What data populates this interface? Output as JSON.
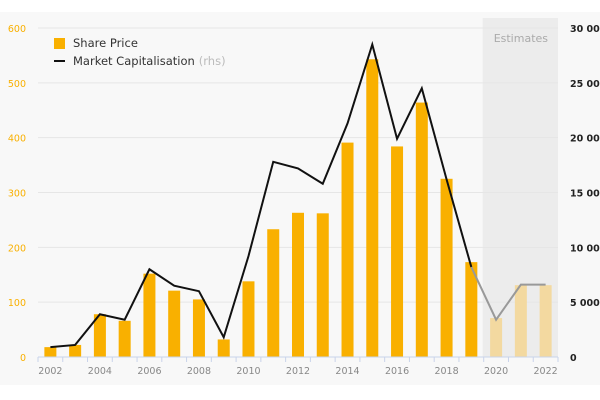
{
  "chart_data": {
    "type": "bar",
    "categories": [
      "2002",
      "2003",
      "2004",
      "2005",
      "2006",
      "2007",
      "2008",
      "2009",
      "2010",
      "2011",
      "2012",
      "2013",
      "2014",
      "2015",
      "2016",
      "2017",
      "2018",
      "2019",
      "2020",
      "2021",
      "2022"
    ],
    "x_tick_labels": [
      "2002",
      "2004",
      "2006",
      "2008",
      "2010",
      "2012",
      "2014",
      "2016",
      "2018",
      "2020",
      "2022"
    ],
    "series": [
      {
        "name": "Share Price",
        "type": "bar",
        "axis": "left",
        "color": "#f9b000",
        "estimate_color": "#f3d9a0",
        "values": [
          18,
          22,
          78,
          66,
          152,
          121,
          105,
          32,
          138,
          233,
          263,
          262,
          391,
          543,
          384,
          464,
          325,
          173,
          71,
          131,
          131
        ]
      },
      {
        "name": "Market Capitalisation",
        "suffix": "(rhs)",
        "type": "line",
        "axis": "right",
        "color": "#111111",
        "estimate_color": "#999999",
        "values": [
          900,
          1100,
          3900,
          3400,
          8000,
          6500,
          6000,
          1800,
          9200,
          17800,
          17200,
          15800,
          21300,
          28500,
          19900,
          24500,
          16200,
          8200,
          3400,
          6600,
          6600
        ]
      }
    ],
    "estimates": {
      "label": "Estimates",
      "from": "2020",
      "to": "2022"
    },
    "y_left": {
      "range": [
        0,
        600
      ],
      "ticks": [
        "0",
        "100",
        "200",
        "300",
        "400",
        "500",
        "600"
      ],
      "color": "#f9b000"
    },
    "y_right": {
      "range": [
        0,
        30000
      ],
      "ticks": [
        "0",
        "5 000",
        "10 000",
        "15 000",
        "20 000",
        "25 000",
        "30 000"
      ]
    },
    "grid": true,
    "legend_placement": "top-left"
  }
}
